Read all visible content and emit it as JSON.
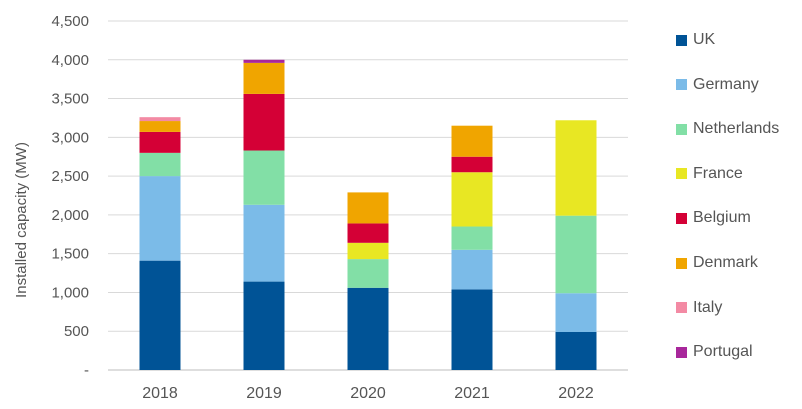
{
  "chart_data": {
    "type": "bar",
    "stacked": true,
    "title": "",
    "xlabel": "",
    "ylabel": "Installed capacity (MW)",
    "ylim": [
      0,
      4500
    ],
    "yticks": [
      "-",
      "500",
      "1,000",
      "1,500",
      "2,000",
      "2,500",
      "3,000",
      "3,500",
      "4,000",
      "4,500"
    ],
    "grid": true,
    "legend_position": "right",
    "categories": [
      "2018",
      "2019",
      "2020",
      "2021",
      "2022"
    ],
    "series": [
      {
        "name": "UK",
        "color": "#005396",
        "values": [
          1410,
          1140,
          1060,
          1040,
          490
        ]
      },
      {
        "name": "Germany",
        "color": "#7bbbe8",
        "values": [
          1090,
          990,
          0,
          510,
          500
        ]
      },
      {
        "name": "Netherlands",
        "color": "#82dfa6",
        "values": [
          300,
          700,
          370,
          300,
          1000
        ]
      },
      {
        "name": "France",
        "color": "#e8e723",
        "values": [
          0,
          0,
          210,
          700,
          1230
        ]
      },
      {
        "name": "Belgium",
        "color": "#d40036",
        "values": [
          270,
          730,
          250,
          200,
          0
        ]
      },
      {
        "name": "Denmark",
        "color": "#f0a500",
        "values": [
          140,
          400,
          400,
          400,
          0
        ]
      },
      {
        "name": "Italy",
        "color": "#f38aa4",
        "values": [
          50,
          0,
          0,
          0,
          0
        ]
      },
      {
        "name": "Portugal",
        "color": "#a8279b",
        "values": [
          0,
          40,
          0,
          0,
          0
        ]
      }
    ]
  }
}
